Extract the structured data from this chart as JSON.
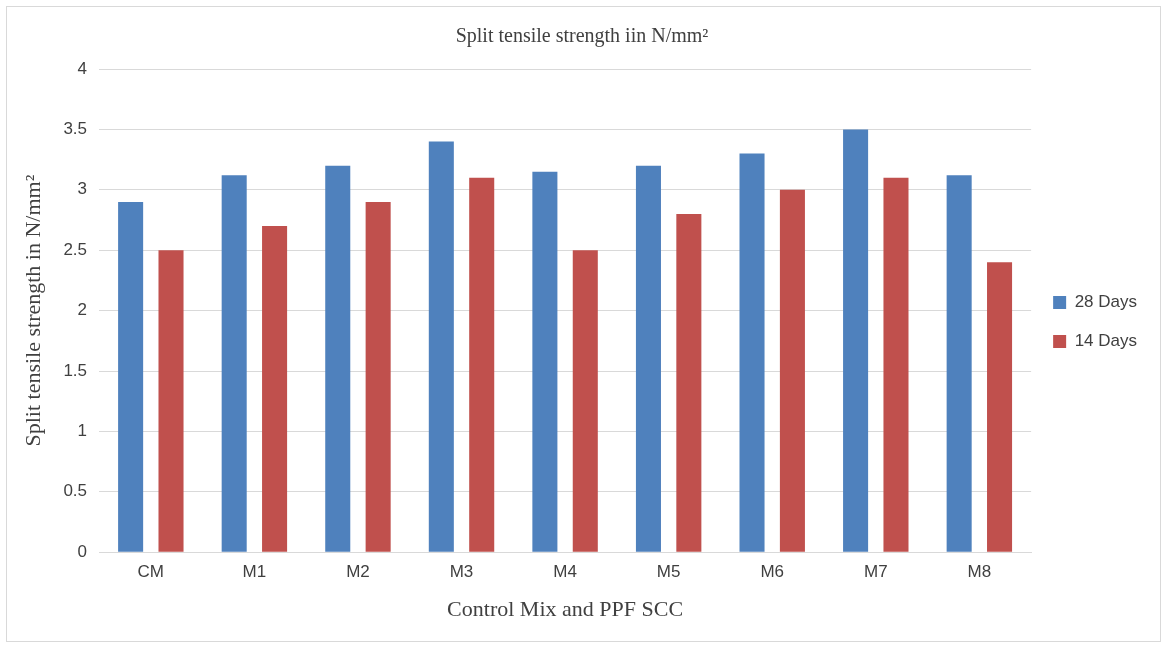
{
  "chart_data": {
    "type": "bar",
    "title": "Split tensile strength iin N/mm²",
    "xlabel": "Control Mix and PPF SCC",
    "ylabel": "Split tensile strength in N/mm²",
    "categories": [
      "CM",
      "M1",
      "M2",
      "M3",
      "M4",
      "M5",
      "M6",
      "M7",
      "M8"
    ],
    "series": [
      {
        "name": "28 Days",
        "color": "#4f81bd",
        "values": [
          2.9,
          3.12,
          3.2,
          3.4,
          3.15,
          3.2,
          3.3,
          3.5,
          3.12
        ]
      },
      {
        "name": "14 Days",
        "color": "#c0504d",
        "values": [
          2.5,
          2.7,
          2.9,
          3.1,
          2.5,
          2.8,
          3.0,
          3.1,
          2.4
        ]
      }
    ],
    "ylim": [
      0,
      4
    ],
    "yticks": [
      0,
      0.5,
      1,
      1.5,
      2,
      2.5,
      3,
      3.5,
      4
    ],
    "grid": "y",
    "legend": "right"
  }
}
